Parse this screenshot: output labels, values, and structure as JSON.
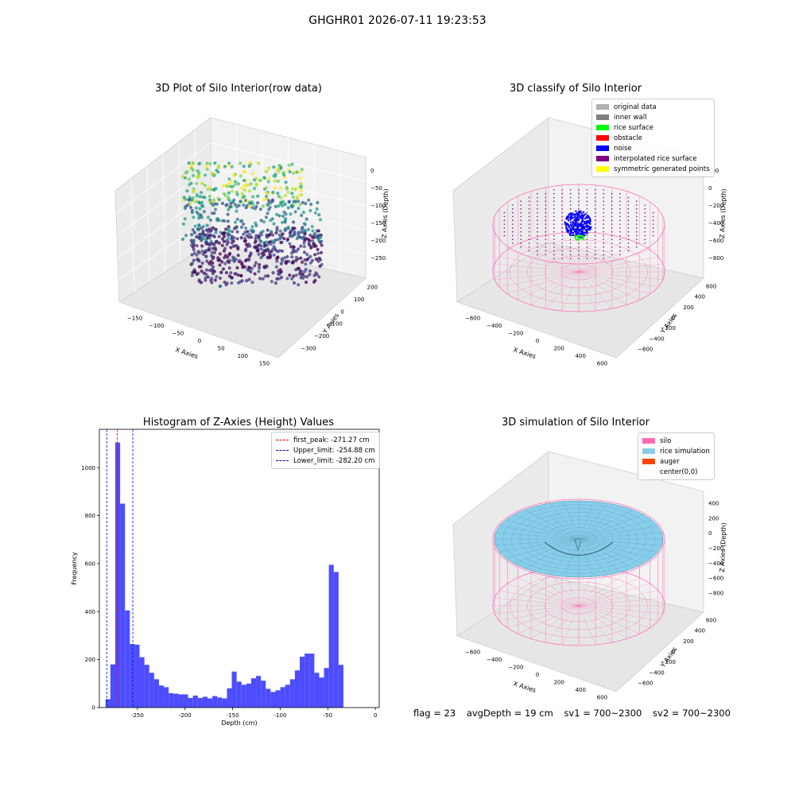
{
  "suptitle": "GHGHR01 2026-07-11 19:23:53",
  "status": {
    "flag": "flag = 23",
    "avg_depth": "avgDepth = 19 cm",
    "sv1": "sv1 = 700~2300",
    "sv2": "sv2 = 700~2300"
  },
  "chart_data": [
    {
      "type": "scatter",
      "title": "3D Plot of Silo Interior(row data)",
      "projection": "3d",
      "xlabel": "X Axies",
      "ylabel": "Y Axies",
      "zlabel": "Z Axies (Depth)",
      "x_ticks": [
        "−150",
        "−100",
        "−50",
        "0",
        "50",
        "100",
        "150"
      ],
      "y_ticks": [
        "−300",
        "−200",
        "−100",
        "0",
        "100",
        "200"
      ],
      "z_ticks": [
        "−250",
        "−200",
        "−150",
        "−100",
        "−50",
        "0"
      ],
      "colormap": "viridis"
    },
    {
      "type": "scatter",
      "title": "3D classify of Silo Interior",
      "projection": "3d",
      "xlabel": "X Axies",
      "ylabel": "Y Axies",
      "zlabel": "Z Axies (Depth)",
      "x_ticks": [
        "−600",
        "−400",
        "−200",
        "0",
        "200",
        "400",
        "600"
      ],
      "y_ticks": [
        "−600",
        "−400",
        "−200",
        "0",
        "200",
        "400",
        "600"
      ],
      "z_ticks": [
        "−800",
        "−600",
        "−400",
        "−200",
        "0",
        "200"
      ],
      "legend": [
        {
          "label": "original data",
          "color": "#b0b0b0"
        },
        {
          "label": "inner wall",
          "color": "#808080"
        },
        {
          "label": "rice surface",
          "color": "#00ff00"
        },
        {
          "label": "obstacle",
          "color": "#ff0000"
        },
        {
          "label": "noise",
          "color": "#0000ff"
        },
        {
          "label": "interpolated rice surface",
          "color": "#800080"
        },
        {
          "label": "symmetric generated points",
          "color": "#ffff00"
        }
      ]
    },
    {
      "type": "bar",
      "title": "Histogram of Z-Axies (Height) Values",
      "xlabel": "Depth (cm)",
      "ylabel": "Frequency",
      "xlim": [
        -290,
        4
      ],
      "ylim": [
        0,
        1160
      ],
      "x_ticks": [
        -250,
        -200,
        -150,
        -100,
        -50,
        0
      ],
      "y_ticks": [
        0,
        200,
        400,
        600,
        800,
        1000
      ],
      "bar_color": "#4d4dff",
      "bin_start": -283.5,
      "bin_width": 5.1,
      "values": [
        35,
        180,
        1105,
        850,
        405,
        265,
        262,
        210,
        178,
        145,
        118,
        92,
        85,
        60,
        58,
        55,
        55,
        40,
        50,
        40,
        45,
        38,
        48,
        42,
        38,
        80,
        150,
        108,
        95,
        100,
        122,
        132,
        112,
        78,
        65,
        72,
        85,
        95,
        118,
        155,
        212,
        225,
        225,
        145,
        125,
        165,
        595,
        565,
        178
      ],
      "vlines": [
        {
          "label": "first_peak: -271.27 cm",
          "x": -271.27,
          "color": "#ff0000"
        },
        {
          "label": "Upper_limit: -254.88 cm",
          "x": -254.88,
          "color": "#0000ff"
        },
        {
          "label": "Lower_limit: -282.20 cm",
          "x": -282.2,
          "color": "#0000ff"
        }
      ]
    },
    {
      "type": "area",
      "title": "3D simulation of Silo Interior",
      "projection": "3d",
      "xlabel": "X Axies",
      "ylabel": "Y Axies",
      "zlabel": "Z Axies (Depth)",
      "x_ticks": [
        "−600",
        "−400",
        "−200",
        "0",
        "200",
        "400",
        "600"
      ],
      "y_ticks": [
        "−600",
        "−400",
        "−200",
        "0",
        "200",
        "400",
        "600"
      ],
      "z_ticks": [
        "−800",
        "−600",
        "−400",
        "−200",
        "0",
        "200",
        "400"
      ],
      "legend": [
        {
          "label": "silo",
          "color": "#ff69b4"
        },
        {
          "label": "rice simulation",
          "color": "#87ceeb"
        },
        {
          "label": "auger",
          "color": "#ff4500"
        },
        {
          "label": "center(0,0)",
          "color": "#ffffff"
        }
      ]
    }
  ]
}
